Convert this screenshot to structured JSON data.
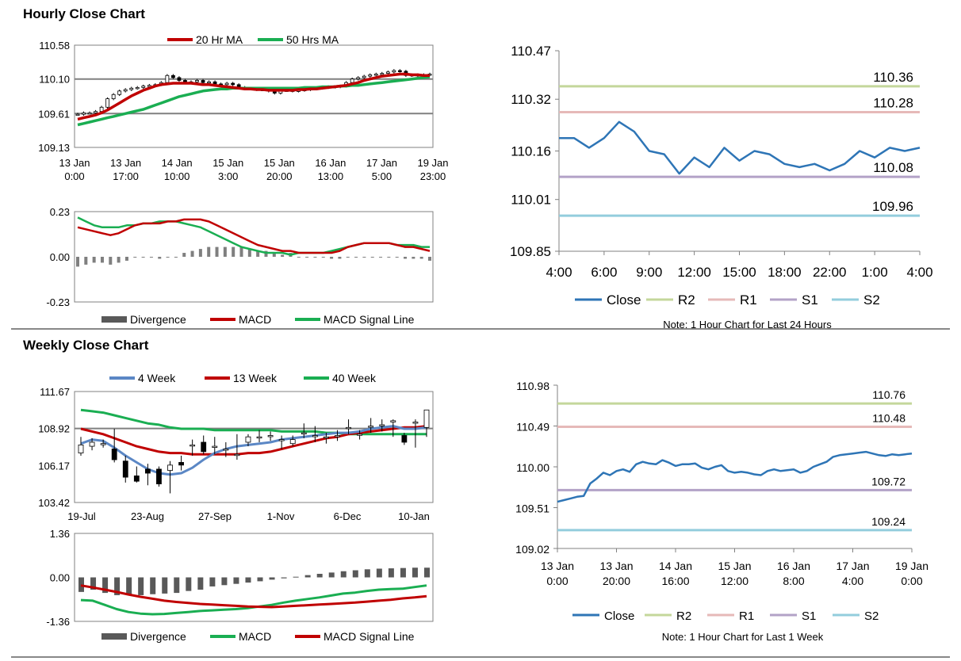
{
  "hourly_section": {
    "title": "Hourly Close Chart"
  },
  "weekly_section": {
    "title": "Weekly Close Chart"
  },
  "colors": {
    "red": "#c00000",
    "green": "#1aae52",
    "blue": "#2e75b6",
    "wblue": "#5b87c5",
    "r2": "#c4d79b",
    "r1": "#e6b9b8",
    "s1": "#b3a2c7",
    "s2": "#93cddd",
    "gray": "#595959"
  },
  "chart_data": [
    {
      "id": "hourly-price",
      "type": "candlestick",
      "legend": [
        "20 Hr MA",
        "50 Hrs MA"
      ],
      "y_ticks": [
        "110.58",
        "110.10",
        "109.61",
        "109.13"
      ],
      "ylim": [
        109.13,
        110.58
      ],
      "ref_lines": [
        110.1,
        109.61
      ],
      "x_ticks": [
        [
          "13 Jan",
          "0:00"
        ],
        [
          "13 Jan",
          "17:00"
        ],
        [
          "14 Jan",
          "10:00"
        ],
        [
          "15 Jan",
          "3:00"
        ],
        [
          "15 Jan",
          "20:00"
        ],
        [
          "16 Jan",
          "13:00"
        ],
        [
          "17 Jan",
          "5:00"
        ],
        [
          "19 Jan",
          "23:00"
        ]
      ],
      "close": [
        109.6,
        109.62,
        109.62,
        109.64,
        109.7,
        109.82,
        109.88,
        109.93,
        109.95,
        109.97,
        109.98,
        110.0,
        110.01,
        110.02,
        110.05,
        110.15,
        110.12,
        110.08,
        110.05,
        110.06,
        110.08,
        110.05,
        110.06,
        110.03,
        110.02,
        110.04,
        110.02,
        109.98,
        109.97,
        109.96,
        109.95,
        109.95,
        109.93,
        109.9,
        109.94,
        109.94,
        109.93,
        109.94,
        109.95,
        109.96,
        109.97,
        109.98,
        109.99,
        109.99,
        110.0,
        110.05,
        110.1,
        110.12,
        110.14,
        110.16,
        110.17,
        110.18,
        110.2,
        110.22,
        110.21,
        110.15,
        110.16,
        110.15,
        110.16,
        110.17
      ],
      "ma20": [
        109.53,
        109.55,
        109.57,
        109.59,
        109.62,
        109.66,
        109.71,
        109.76,
        109.81,
        109.86,
        109.9,
        109.94,
        109.97,
        110.0,
        110.02,
        110.03,
        110.04,
        110.04,
        110.04,
        110.04,
        110.03,
        110.02,
        110.02,
        110.01,
        110.0,
        109.99,
        109.98,
        109.97,
        109.96,
        109.96,
        109.95,
        109.95,
        109.94,
        109.94,
        109.94,
        109.94,
        109.94,
        109.95,
        109.95,
        109.96,
        109.96,
        109.97,
        109.98,
        109.99,
        110.0,
        110.01,
        110.03,
        110.05,
        110.08,
        110.1,
        110.12,
        110.14,
        110.15,
        110.16,
        110.17,
        110.17,
        110.16,
        110.16,
        110.15,
        110.15
      ],
      "ma50": [
        109.45,
        109.47,
        109.49,
        109.51,
        109.53,
        109.55,
        109.57,
        109.59,
        109.61,
        109.63,
        109.65,
        109.67,
        109.7,
        109.73,
        109.76,
        109.79,
        109.82,
        109.85,
        109.87,
        109.89,
        109.91,
        109.93,
        109.94,
        109.95,
        109.96,
        109.96,
        109.97,
        109.97,
        109.97,
        109.97,
        109.97,
        109.97,
        109.97,
        109.97,
        109.97,
        109.97,
        109.97,
        109.97,
        109.98,
        109.98,
        109.98,
        109.99,
        109.99,
        109.99,
        110.0,
        110.0,
        110.01,
        110.01,
        110.02,
        110.03,
        110.04,
        110.05,
        110.06,
        110.07,
        110.08,
        110.09,
        110.1,
        110.11,
        110.12,
        110.13
      ]
    },
    {
      "id": "hourly-macd",
      "type": "line",
      "y_ticks": [
        "0.23",
        "0.00",
        "-0.23"
      ],
      "ylim": [
        -0.23,
        0.23
      ],
      "legend": [
        "Divergence",
        "MACD",
        "MACD Signal Line"
      ],
      "macd": [
        0.15,
        0.14,
        0.13,
        0.12,
        0.11,
        0.12,
        0.14,
        0.16,
        0.17,
        0.17,
        0.17,
        0.18,
        0.18,
        0.19,
        0.19,
        0.19,
        0.18,
        0.16,
        0.14,
        0.12,
        0.1,
        0.08,
        0.06,
        0.05,
        0.04,
        0.03,
        0.03,
        0.02,
        0.02,
        0.02,
        0.02,
        0.02,
        0.03,
        0.05,
        0.06,
        0.07,
        0.07,
        0.07,
        0.07,
        0.06,
        0.05,
        0.05,
        0.04,
        0.03
      ],
      "signal": [
        0.2,
        0.18,
        0.16,
        0.15,
        0.15,
        0.15,
        0.16,
        0.16,
        0.17,
        0.17,
        0.18,
        0.18,
        0.18,
        0.17,
        0.16,
        0.15,
        0.13,
        0.11,
        0.09,
        0.07,
        0.05,
        0.04,
        0.03,
        0.02,
        0.02,
        0.02,
        0.01,
        0.02,
        0.02,
        0.02,
        0.02,
        0.03,
        0.04,
        0.05,
        0.06,
        0.07,
        0.07,
        0.07,
        0.07,
        0.06,
        0.06,
        0.06,
        0.05,
        0.05
      ],
      "divergence": [
        -0.05,
        -0.04,
        -0.03,
        -0.03,
        -0.04,
        -0.03,
        -0.02,
        0.0,
        0.0,
        0.0,
        -0.01,
        0.0,
        0.0,
        0.02,
        0.03,
        0.04,
        0.05,
        0.05,
        0.05,
        0.05,
        0.05,
        0.04,
        0.03,
        0.03,
        0.02,
        0.01,
        0.02,
        0.0,
        0.0,
        0.0,
        0.0,
        -0.01,
        -0.01,
        0.0,
        0.0,
        0.0,
        0.0,
        0.0,
        0.0,
        0.0,
        -0.01,
        -0.01,
        -0.01,
        -0.02
      ]
    },
    {
      "id": "hourly-24h",
      "type": "line",
      "y_ticks": [
        "110.47",
        "110.32",
        "110.16",
        "110.01",
        "109.85"
      ],
      "ylim": [
        109.85,
        110.47
      ],
      "x_ticks": [
        "4:00",
        "6:00",
        "9:00",
        "12:00",
        "15:00",
        "18:00",
        "22:00",
        "1:00",
        "4:00"
      ],
      "levels": [
        {
          "name": "R2",
          "value": 110.36,
          "label": "110.36"
        },
        {
          "name": "R1",
          "value": 110.28,
          "label": "110.28"
        },
        {
          "name": "S1",
          "value": 110.08,
          "label": "110.08"
        },
        {
          "name": "S2",
          "value": 109.96,
          "label": "109.96"
        }
      ],
      "close": [
        110.2,
        110.2,
        110.17,
        110.2,
        110.25,
        110.22,
        110.16,
        110.15,
        110.09,
        110.14,
        110.11,
        110.17,
        110.13,
        110.16,
        110.15,
        110.12,
        110.11,
        110.12,
        110.1,
        110.12,
        110.16,
        110.14,
        110.17,
        110.16,
        110.17
      ],
      "legend": [
        "Close",
        "R2",
        "R1",
        "S1",
        "S2"
      ],
      "note": "Note: 1 Hour Chart for Last 24 Hours"
    },
    {
      "id": "weekly-price",
      "type": "candlestick",
      "legend": [
        "4 Week",
        "13 Week",
        "40 Week"
      ],
      "y_ticks": [
        "111.67",
        "108.92",
        "106.17",
        "103.42"
      ],
      "ylim": [
        103.42,
        111.67
      ],
      "ref_lines": [
        108.92
      ],
      "x_ticks": [
        "19-Jul",
        "23-Aug",
        "27-Sep",
        "1-Nov",
        "6-Dec",
        "10-Jan"
      ],
      "candles": [
        {
          "o": 107.1,
          "c": 107.7,
          "h": 108.3,
          "l": 106.9
        },
        {
          "o": 107.6,
          "c": 107.9,
          "h": 108.2,
          "l": 107.3
        },
        {
          "o": 107.8,
          "c": 107.8,
          "h": 108.1,
          "l": 107.5
        },
        {
          "o": 107.4,
          "c": 106.6,
          "h": 108.9,
          "l": 106.4
        },
        {
          "o": 106.5,
          "c": 105.3,
          "h": 106.9,
          "l": 104.9
        },
        {
          "o": 105.4,
          "c": 105.0,
          "h": 106.1,
          "l": 104.9
        },
        {
          "o": 105.9,
          "c": 105.6,
          "h": 106.3,
          "l": 104.7
        },
        {
          "o": 105.9,
          "c": 104.8,
          "h": 106.1,
          "l": 104.6
        },
        {
          "o": 105.8,
          "c": 106.2,
          "h": 106.5,
          "l": 104.1
        },
        {
          "o": 106.4,
          "c": 106.2,
          "h": 106.9,
          "l": 105.8
        },
        {
          "o": 107.7,
          "c": 107.7,
          "h": 108.1,
          "l": 106.9
        },
        {
          "o": 107.9,
          "c": 107.2,
          "h": 108.4,
          "l": 107.0
        },
        {
          "o": 107.6,
          "c": 107.6,
          "h": 108.3,
          "l": 107.0
        },
        {
          "o": 107.4,
          "c": 107.4,
          "h": 107.9,
          "l": 106.8
        },
        {
          "o": 107.0,
          "c": 107.0,
          "h": 108.5,
          "l": 106.6
        },
        {
          "o": 107.9,
          "c": 108.3,
          "h": 108.5,
          "l": 107.6
        },
        {
          "o": 108.3,
          "c": 108.3,
          "h": 108.8,
          "l": 107.9
        },
        {
          "o": 108.4,
          "c": 108.4,
          "h": 108.7,
          "l": 108.0
        },
        {
          "o": 108.1,
          "c": 108.1,
          "h": 108.4,
          "l": 107.4
        },
        {
          "o": 107.8,
          "c": 108.1,
          "h": 108.4,
          "l": 107.6
        },
        {
          "o": 108.6,
          "c": 108.6,
          "h": 109.3,
          "l": 108.2
        },
        {
          "o": 108.4,
          "c": 108.4,
          "h": 109.1,
          "l": 107.9
        },
        {
          "o": 108.3,
          "c": 108.3,
          "h": 108.6,
          "l": 107.8
        },
        {
          "o": 108.4,
          "c": 108.4,
          "h": 108.8,
          "l": 108.0
        },
        {
          "o": 109.0,
          "c": 109.0,
          "h": 109.6,
          "l": 108.5
        },
        {
          "o": 108.5,
          "c": 108.5,
          "h": 108.8,
          "l": 108.1
        },
        {
          "o": 109.1,
          "c": 109.1,
          "h": 109.7,
          "l": 108.6
        },
        {
          "o": 109.2,
          "c": 109.2,
          "h": 109.6,
          "l": 108.7
        },
        {
          "o": 109.4,
          "c": 109.5,
          "h": 109.6,
          "l": 108.3
        },
        {
          "o": 108.4,
          "c": 107.9,
          "h": 108.6,
          "l": 107.7
        },
        {
          "o": 109.4,
          "c": 109.4,
          "h": 109.6,
          "l": 107.5
        },
        {
          "o": 109.0,
          "c": 110.3,
          "h": 110.3,
          "l": 108.3
        }
      ],
      "ma4": [
        107.8,
        108.1,
        108.0,
        107.5,
        106.9,
        106.4,
        105.9,
        105.6,
        105.5,
        105.6,
        106.0,
        106.6,
        107.1,
        107.4,
        107.6,
        107.7,
        107.8,
        107.9,
        108.1,
        108.2,
        108.3,
        108.4,
        108.5,
        108.6,
        108.6,
        108.7,
        108.9,
        109.0,
        109.1,
        108.9,
        108.9,
        109.0
      ],
      "ma13": [
        108.9,
        108.7,
        108.5,
        108.2,
        107.9,
        107.6,
        107.4,
        107.2,
        107.1,
        107.1,
        107.0,
        107.0,
        107.0,
        107.0,
        107.0,
        107.1,
        107.1,
        107.2,
        107.4,
        107.6,
        107.8,
        108.0,
        108.2,
        108.3,
        108.5,
        108.6,
        108.7,
        108.8,
        108.9,
        109.0,
        109.0,
        109.1
      ],
      "ma40": [
        110.3,
        110.2,
        110.1,
        109.9,
        109.7,
        109.5,
        109.3,
        109.2,
        109.0,
        108.9,
        108.9,
        108.9,
        108.8,
        108.8,
        108.8,
        108.8,
        108.8,
        108.8,
        108.7,
        108.7,
        108.7,
        108.7,
        108.6,
        108.6,
        108.5,
        108.5,
        108.5,
        108.5,
        108.5,
        108.5,
        108.5,
        108.5
      ]
    },
    {
      "id": "weekly-macd",
      "type": "line",
      "y_ticks": [
        "1.36",
        "0.00",
        "-1.36"
      ],
      "ylim": [
        -1.36,
        1.36
      ],
      "legend": [
        "Divergence",
        "MACD",
        "MACD Signal Line"
      ],
      "divergence": [
        -0.45,
        -0.38,
        -0.48,
        -0.55,
        -0.52,
        -0.55,
        -0.52,
        -0.5,
        -0.48,
        -0.42,
        -0.38,
        -0.28,
        -0.24,
        -0.2,
        -0.16,
        -0.12,
        -0.07,
        -0.03,
        0.02,
        0.07,
        0.11,
        0.15,
        0.19,
        0.22,
        0.25,
        0.27,
        0.28,
        0.29,
        0.3,
        0.3
      ],
      "macd": [
        -0.7,
        -0.72,
        -0.85,
        -0.98,
        -1.07,
        -1.12,
        -1.14,
        -1.13,
        -1.1,
        -1.07,
        -1.04,
        -1.02,
        -1.0,
        -0.98,
        -0.95,
        -0.9,
        -0.85,
        -0.78,
        -0.72,
        -0.67,
        -0.62,
        -0.56,
        -0.5,
        -0.47,
        -0.42,
        -0.38,
        -0.36,
        -0.35,
        -0.3,
        -0.25
      ],
      "signal": [
        -0.25,
        -0.31,
        -0.38,
        -0.45,
        -0.53,
        -0.6,
        -0.66,
        -0.72,
        -0.76,
        -0.79,
        -0.82,
        -0.84,
        -0.86,
        -0.88,
        -0.9,
        -0.91,
        -0.92,
        -0.9,
        -0.88,
        -0.86,
        -0.84,
        -0.82,
        -0.8,
        -0.78,
        -0.75,
        -0.72,
        -0.69,
        -0.65,
        -0.62,
        -0.58
      ]
    },
    {
      "id": "weekly-1w",
      "type": "line",
      "y_ticks": [
        "110.98",
        "110.49",
        "110.00",
        "109.51",
        "109.02"
      ],
      "ylim": [
        109.02,
        110.98
      ],
      "x_ticks": [
        [
          "13 Jan",
          "0:00"
        ],
        [
          "13 Jan",
          "20:00"
        ],
        [
          "14 Jan",
          "16:00"
        ],
        [
          "15 Jan",
          "12:00"
        ],
        [
          "16 Jan",
          "8:00"
        ],
        [
          "17 Jan",
          "4:00"
        ],
        [
          "19 Jan",
          "0:00"
        ]
      ],
      "levels": [
        {
          "name": "R2",
          "value": 110.76,
          "label": "110.76"
        },
        {
          "name": "R1",
          "value": 110.48,
          "label": "110.48"
        },
        {
          "name": "S1",
          "value": 109.72,
          "label": "109.72"
        },
        {
          "name": "S2",
          "value": 109.24,
          "label": "109.24"
        }
      ],
      "close": [
        109.58,
        109.6,
        109.62,
        109.64,
        109.65,
        109.8,
        109.86,
        109.93,
        109.9,
        109.95,
        109.97,
        109.94,
        110.03,
        110.06,
        110.04,
        110.03,
        110.08,
        110.05,
        110.01,
        110.03,
        110.03,
        110.04,
        109.99,
        109.97,
        110.0,
        110.02,
        109.95,
        109.93,
        109.94,
        109.93,
        109.91,
        109.9,
        109.95,
        109.97,
        109.95,
        109.96,
        109.97,
        109.93,
        109.95,
        110.0,
        110.03,
        110.06,
        110.12,
        110.14,
        110.15,
        110.16,
        110.17,
        110.18,
        110.16,
        110.14,
        110.13,
        110.15,
        110.14,
        110.15,
        110.16
      ],
      "legend": [
        "Close",
        "R2",
        "R1",
        "S1",
        "S2"
      ],
      "note": "Note: 1 Hour Chart for Last 1 Week"
    }
  ]
}
